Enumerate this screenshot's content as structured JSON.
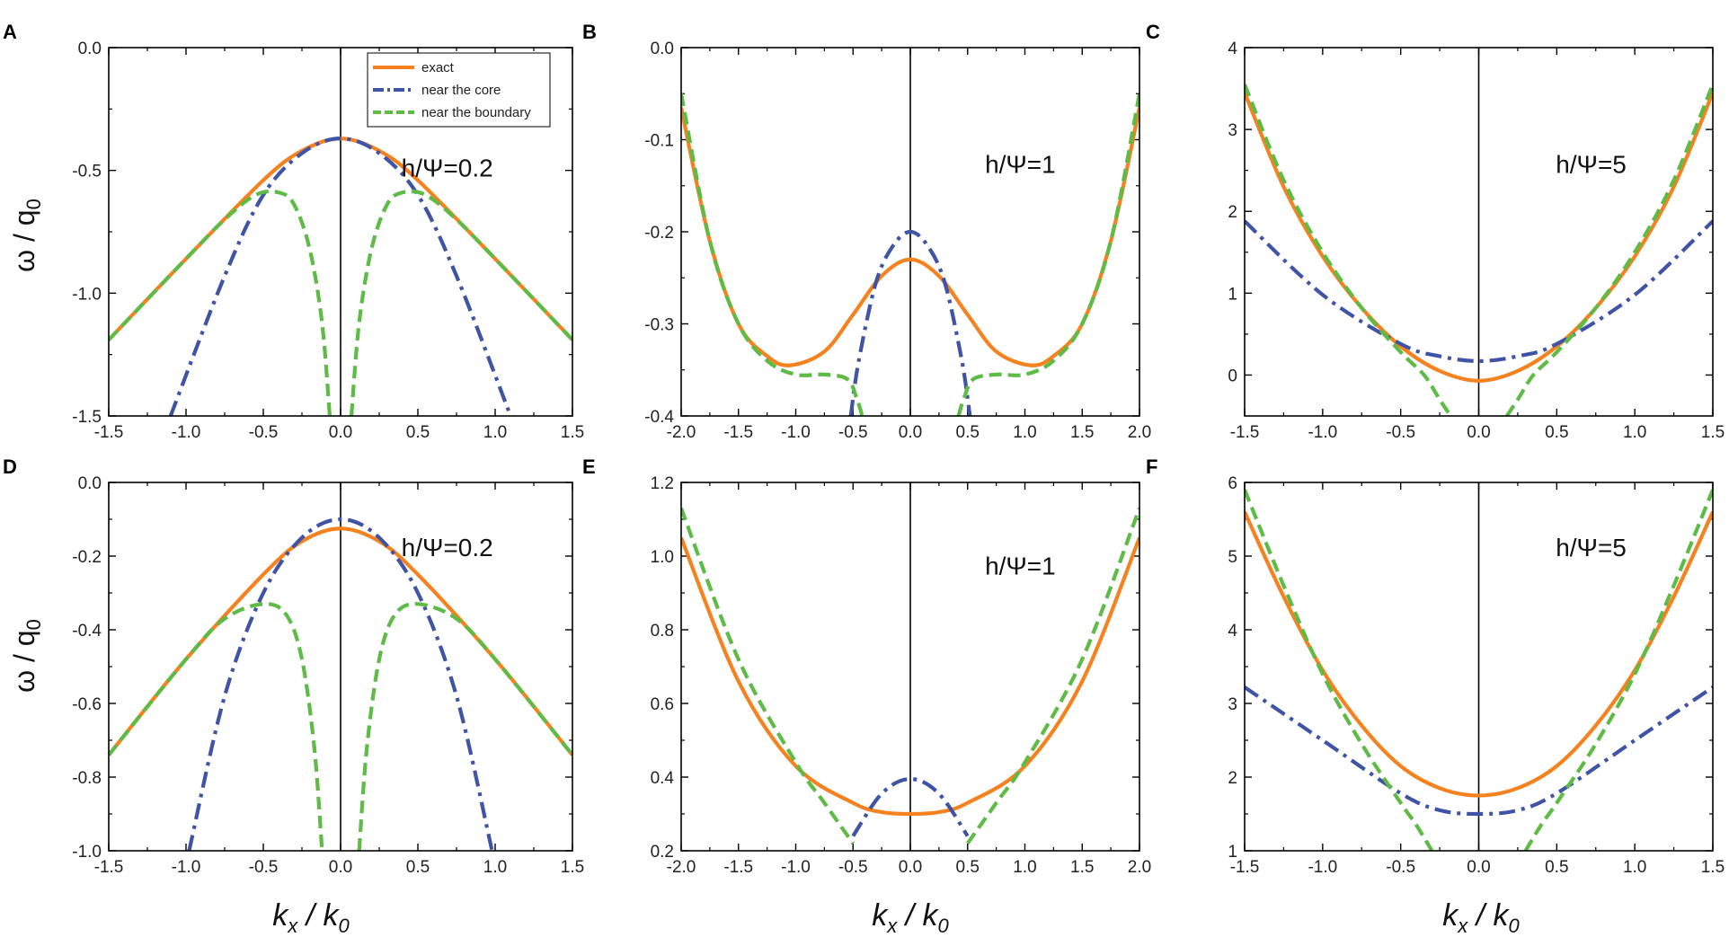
{
  "figure_labels": {
    "x_main": "k",
    "x_sub1": "x",
    "x_slash": " / k",
    "x_sub2": "0",
    "y_main": "ω / q",
    "y_sub": "0"
  },
  "legend": {
    "entries": [
      {
        "label": "exact",
        "color": "#F5821F",
        "style": "solid"
      },
      {
        "label": "near the core",
        "color": "#3F54A6",
        "style": "dashdot"
      },
      {
        "label": "near the boundary",
        "color": "#5DBB46",
        "style": "dash"
      }
    ]
  },
  "chart_data": [
    {
      "panel": "A",
      "type": "line",
      "annotation": "h/Ψ=0.2",
      "xlim": [
        -1.5,
        1.5
      ],
      "ylim": [
        -1.5,
        0.0
      ],
      "xticks": [
        "-1.5",
        "-1.0",
        "-0.5",
        "0.0",
        "0.5",
        "1.0",
        "1.5"
      ],
      "yticks": [
        "-1.5",
        "-1.0",
        "-0.5",
        "0.0"
      ],
      "xtick_values": [
        -1.5,
        -1.0,
        -0.5,
        0.0,
        0.5,
        1.0,
        1.5
      ],
      "ytick_values": [
        -1.5,
        -1.0,
        -0.5,
        0.0
      ],
      "legend": true,
      "series": [
        {
          "name": "exact",
          "x": [
            -1.5,
            -1.0,
            -0.5,
            -0.25,
            0.0,
            0.25,
            0.5,
            1.0,
            1.5
          ],
          "y": [
            -1.19,
            -0.86,
            -0.54,
            -0.42,
            -0.37,
            -0.42,
            -0.54,
            -0.86,
            -1.19
          ]
        },
        {
          "name": "near the core",
          "x": [
            -1.1,
            -0.75,
            -0.5,
            -0.25,
            0.0,
            0.25,
            0.5,
            0.75,
            1.1
          ],
          "y": [
            -1.5,
            -0.93,
            -0.6,
            -0.43,
            -0.37,
            -0.43,
            -0.6,
            -0.93,
            -1.5
          ]
        },
        {
          "name": "near the boundary",
          "segments": [
            {
              "x": [
                -1.5,
                -1.0,
                -0.75,
                -0.55,
                -0.4,
                -0.3,
                -0.2,
                -0.12,
                -0.07
              ],
              "y": [
                -1.19,
                -0.86,
                -0.7,
                -0.6,
                -0.59,
                -0.64,
                -0.82,
                -1.12,
                -1.5
              ]
            },
            {
              "x": [
                0.07,
                0.12,
                0.2,
                0.3,
                0.4,
                0.55,
                0.75,
                1.0,
                1.5
              ],
              "y": [
                -1.5,
                -1.12,
                -0.82,
                -0.64,
                -0.59,
                -0.6,
                -0.7,
                -0.86,
                -1.19
              ]
            }
          ]
        }
      ]
    },
    {
      "panel": "B",
      "type": "line",
      "annotation": "h/Ψ=1",
      "xlim": [
        -2.0,
        2.0
      ],
      "ylim": [
        -0.4,
        0.0
      ],
      "xticks": [
        "-2.0",
        "-1.5",
        "-1.0",
        "-0.5",
        "0.0",
        "0.5",
        "1.0",
        "1.5",
        "2.0"
      ],
      "yticks": [
        "-0.4",
        "-0.3",
        "-0.2",
        "-0.1",
        "0.0"
      ],
      "xtick_values": [
        -2.0,
        -1.5,
        -1.0,
        -0.5,
        0.0,
        0.5,
        1.0,
        1.5,
        2.0
      ],
      "ytick_values": [
        -0.4,
        -0.3,
        -0.2,
        -0.1,
        0.0
      ],
      "legend": false,
      "series": [
        {
          "name": "exact",
          "x": [
            -2.0,
            -1.75,
            -1.5,
            -1.25,
            -1.05,
            -0.75,
            -0.5,
            -0.25,
            0.0,
            0.25,
            0.5,
            0.75,
            1.05,
            1.25,
            1.5,
            1.75,
            2.0
          ],
          "y": [
            -0.065,
            -0.21,
            -0.3,
            -0.335,
            -0.345,
            -0.33,
            -0.29,
            -0.248,
            -0.23,
            -0.248,
            -0.29,
            -0.33,
            -0.345,
            -0.335,
            -0.3,
            -0.21,
            -0.065
          ]
        },
        {
          "name": "near the core",
          "segments": [
            {
              "x": [
                -0.52,
                -0.45,
                -0.3,
                -0.15,
                0.0,
                0.15,
                0.3,
                0.45,
                0.52
              ],
              "y": [
                -0.4,
                -0.34,
                -0.255,
                -0.215,
                -0.2,
                -0.215,
                -0.255,
                -0.34,
                -0.4
              ]
            }
          ]
        },
        {
          "name": "near the boundary",
          "segments": [
            {
              "x": [
                -2.0,
                -1.75,
                -1.5,
                -1.25,
                -1.0,
                -0.75,
                -0.55,
                -0.47,
                -0.42
              ],
              "y": [
                -0.05,
                -0.21,
                -0.3,
                -0.34,
                -0.355,
                -0.355,
                -0.36,
                -0.38,
                -0.4
              ]
            },
            {
              "x": [
                0.42,
                0.47,
                0.55,
                0.75,
                1.0,
                1.25,
                1.5,
                1.75,
                2.0
              ],
              "y": [
                -0.4,
                -0.38,
                -0.36,
                -0.355,
                -0.355,
                -0.34,
                -0.3,
                -0.21,
                -0.05
              ]
            }
          ]
        }
      ]
    },
    {
      "panel": "C",
      "type": "line",
      "annotation": "h/Ψ=5",
      "xlim": [
        -1.5,
        1.5
      ],
      "ylim": [
        -0.5,
        4.0
      ],
      "xticks": [
        "-1.5",
        "-1.0",
        "-0.5",
        "0.0",
        "0.5",
        "1.0",
        "1.5"
      ],
      "yticks": [
        "0",
        "1",
        "2",
        "3",
        "4"
      ],
      "xtick_values": [
        -1.5,
        -1.0,
        -0.5,
        0.0,
        0.5,
        1.0,
        1.5
      ],
      "ytick_values": [
        0,
        1,
        2,
        3,
        4
      ],
      "legend": false,
      "series": [
        {
          "name": "exact",
          "x": [
            -1.5,
            -1.25,
            -1.0,
            -0.75,
            -0.5,
            -0.25,
            0.0,
            0.25,
            0.5,
            0.75,
            1.0,
            1.25,
            1.5
          ],
          "y": [
            3.45,
            2.3,
            1.45,
            0.82,
            0.35,
            0.05,
            -0.07,
            0.05,
            0.35,
            0.82,
            1.45,
            2.3,
            3.45
          ]
        },
        {
          "name": "near the core",
          "x": [
            -1.5,
            -1.0,
            -0.5,
            -0.25,
            0.0,
            0.25,
            0.5,
            1.0,
            1.5
          ],
          "y": [
            1.88,
            0.98,
            0.38,
            0.23,
            0.17,
            0.23,
            0.38,
            0.98,
            1.88
          ]
        },
        {
          "name": "near the boundary",
          "segments": [
            {
              "x": [
                -1.5,
                -1.25,
                -1.0,
                -0.75,
                -0.5,
                -0.35,
                -0.25,
                -0.18
              ],
              "y": [
                3.55,
                2.38,
                1.5,
                0.82,
                0.28,
                0.0,
                -0.3,
                -0.5
              ]
            },
            {
              "x": [
                0.18,
                0.25,
                0.35,
                0.5,
                0.75,
                1.0,
                1.25,
                1.5
              ],
              "y": [
                -0.5,
                -0.3,
                0.0,
                0.28,
                0.82,
                1.5,
                2.38,
                3.55
              ]
            }
          ]
        }
      ]
    },
    {
      "panel": "D",
      "type": "line",
      "annotation": "h/Ψ=0.2",
      "xlim": [
        -1.5,
        1.5
      ],
      "ylim": [
        -1.0,
        0.0
      ],
      "xticks": [
        "-1.5",
        "-1.0",
        "-0.5",
        "0.0",
        "0.5",
        "1.0",
        "1.5"
      ],
      "yticks": [
        "-1.0",
        "-0.8",
        "-0.6",
        "-0.4",
        "-0.2",
        "0.0"
      ],
      "xtick_values": [
        -1.5,
        -1.0,
        -0.5,
        0.0,
        0.5,
        1.0,
        1.5
      ],
      "ytick_values": [
        -1.0,
        -0.8,
        -0.6,
        -0.4,
        -0.2,
        0.0
      ],
      "legend": false,
      "series": [
        {
          "name": "exact",
          "x": [
            -1.5,
            -1.0,
            -0.5,
            -0.25,
            0.0,
            0.25,
            0.5,
            1.0,
            1.5
          ],
          "y": [
            -0.74,
            -0.48,
            -0.25,
            -0.16,
            -0.125,
            -0.16,
            -0.25,
            -0.48,
            -0.74
          ]
        },
        {
          "name": "near the core",
          "x": [
            -0.98,
            -0.75,
            -0.5,
            -0.25,
            0.0,
            0.25,
            0.5,
            0.75,
            0.98
          ],
          "y": [
            -1.0,
            -0.58,
            -0.3,
            -0.15,
            -0.1,
            -0.15,
            -0.3,
            -0.58,
            -1.0
          ]
        },
        {
          "name": "near the boundary",
          "segments": [
            {
              "x": [
                -1.5,
                -1.0,
                -0.75,
                -0.5,
                -0.35,
                -0.25,
                -0.17,
                -0.12
              ],
              "y": [
                -0.74,
                -0.48,
                -0.37,
                -0.33,
                -0.36,
                -0.48,
                -0.72,
                -1.0
              ]
            },
            {
              "x": [
                0.12,
                0.17,
                0.25,
                0.35,
                0.5,
                0.75,
                1.0,
                1.5
              ],
              "y": [
                -1.0,
                -0.72,
                -0.48,
                -0.36,
                -0.33,
                -0.37,
                -0.48,
                -0.74
              ]
            }
          ]
        }
      ]
    },
    {
      "panel": "E",
      "type": "line",
      "annotation": "h/Ψ=1",
      "xlim": [
        -2.0,
        2.0
      ],
      "ylim": [
        0.2,
        1.2
      ],
      "xticks": [
        "-2.0",
        "-1.5",
        "-1.0",
        "-0.5",
        "0.0",
        "0.5",
        "1.0",
        "1.5",
        "2.0"
      ],
      "yticks": [
        "0.2",
        "0.4",
        "0.6",
        "0.8",
        "1.0",
        "1.2"
      ],
      "xtick_values": [
        -2.0,
        -1.5,
        -1.0,
        -0.5,
        0.0,
        0.5,
        1.0,
        1.5,
        2.0
      ],
      "ytick_values": [
        0.2,
        0.4,
        0.6,
        0.8,
        1.0,
        1.2
      ],
      "legend": false,
      "series": [
        {
          "name": "exact",
          "x": [
            -2.0,
            -1.5,
            -1.0,
            -0.5,
            -0.25,
            0.0,
            0.25,
            0.5,
            1.0,
            1.5,
            2.0
          ],
          "y": [
            1.05,
            0.66,
            0.43,
            0.33,
            0.305,
            0.3,
            0.305,
            0.33,
            0.43,
            0.66,
            1.05
          ]
        },
        {
          "name": "near the core",
          "x": [
            -0.5,
            -0.25,
            0.0,
            0.25,
            0.5
          ],
          "y": [
            0.24,
            0.355,
            0.395,
            0.355,
            0.24
          ]
        },
        {
          "name": "near the boundary",
          "segments": [
            {
              "x": [
                -2.0,
                -1.5,
                -1.0,
                -0.75,
                -0.5
              ],
              "y": [
                1.13,
                0.72,
                0.44,
                0.33,
                0.22
              ]
            },
            {
              "x": [
                0.5,
                0.75,
                1.0,
                1.5,
                2.0
              ],
              "y": [
                0.22,
                0.33,
                0.44,
                0.72,
                1.13
              ]
            }
          ]
        }
      ]
    },
    {
      "panel": "F",
      "type": "line",
      "annotation": "h/Ψ=5",
      "xlim": [
        -1.5,
        1.5
      ],
      "ylim": [
        1.0,
        6.0
      ],
      "xticks": [
        "-1.5",
        "-1.0",
        "-0.5",
        "0.0",
        "0.5",
        "1.0",
        "1.5"
      ],
      "yticks": [
        "1",
        "2",
        "3",
        "4",
        "5",
        "6"
      ],
      "xtick_values": [
        -1.5,
        -1.0,
        -0.5,
        0.0,
        0.5,
        1.0,
        1.5
      ],
      "ytick_values": [
        1,
        2,
        3,
        4,
        5,
        6
      ],
      "legend": false,
      "series": [
        {
          "name": "exact",
          "x": [
            -1.5,
            -1.25,
            -1.0,
            -0.75,
            -0.5,
            -0.25,
            0.0,
            0.25,
            0.5,
            0.75,
            1.0,
            1.25,
            1.5
          ],
          "y": [
            5.6,
            4.45,
            3.45,
            2.7,
            2.15,
            1.85,
            1.75,
            1.85,
            2.15,
            2.7,
            3.45,
            4.45,
            5.6
          ]
        },
        {
          "name": "near the core",
          "x": [
            -1.5,
            -1.0,
            -0.5,
            -0.25,
            0.0,
            0.25,
            0.5,
            1.0,
            1.5
          ],
          "y": [
            3.22,
            2.5,
            1.78,
            1.55,
            1.5,
            1.55,
            1.78,
            2.5,
            3.22
          ]
        },
        {
          "name": "near the boundary",
          "segments": [
            {
              "x": [
                -1.5,
                -1.25,
                -1.0,
                -0.75,
                -0.5,
                -0.4,
                -0.3
              ],
              "y": [
                5.9,
                4.6,
                3.4,
                2.45,
                1.65,
                1.35,
                1.0
              ]
            },
            {
              "x": [
                0.3,
                0.4,
                0.5,
                0.75,
                1.0,
                1.25,
                1.5
              ],
              "y": [
                1.0,
                1.35,
                1.65,
                2.45,
                3.4,
                4.6,
                5.9
              ]
            }
          ]
        }
      ]
    }
  ]
}
